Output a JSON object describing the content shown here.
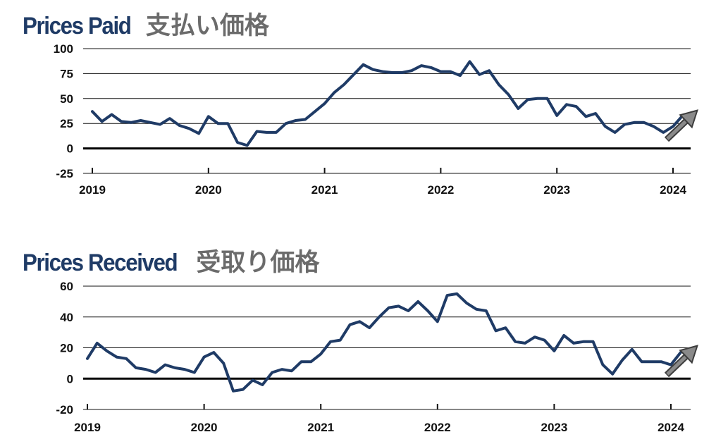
{
  "chart_data": [
    {
      "type": "line",
      "title_en": "Prices Paid",
      "title_ja": "支払い価格",
      "x_labels": [
        "2019",
        "2020",
        "2021",
        "2022",
        "2023",
        "2024"
      ],
      "x_start_year": 2019,
      "x_end_year": 2024.17,
      "ylim": [
        -25,
        100
      ],
      "y_ticks": [
        100,
        75,
        50,
        25,
        0,
        -25
      ],
      "grid": true,
      "series": [
        {
          "color": "#1f3b66",
          "values": [
            37,
            27,
            34,
            27,
            26,
            28,
            26,
            24,
            30,
            23,
            20,
            15,
            32,
            25,
            25,
            6,
            3,
            17,
            16,
            16,
            25,
            28,
            29,
            37,
            45,
            56,
            64,
            74,
            84,
            79,
            77,
            76,
            76,
            78,
            83,
            81,
            77,
            77,
            73,
            87,
            74,
            78,
            64,
            54,
            40,
            49,
            50,
            50,
            33,
            44,
            42,
            32,
            35,
            22,
            16,
            24,
            26,
            26,
            22,
            16,
            22,
            33
          ]
        }
      ],
      "annotation": "upward-arrow"
    },
    {
      "type": "line",
      "title_en": "Prices Received",
      "title_ja": "受取り価格",
      "x_labels": [
        "2019",
        "2020",
        "2021",
        "2022",
        "2023",
        "2024"
      ],
      "x_start_year": 2019,
      "x_end_year": 2024.17,
      "ylim": [
        -20,
        60
      ],
      "y_ticks": [
        60,
        40,
        20,
        0,
        -20
      ],
      "grid": true,
      "series": [
        {
          "color": "#1f3b66",
          "values": [
            13,
            23,
            18,
            14,
            13,
            7,
            6,
            4,
            9,
            7,
            6,
            4,
            14,
            17,
            10,
            -8,
            -7,
            -1,
            -4,
            4,
            6,
            5,
            11,
            11,
            16,
            24,
            25,
            35,
            37,
            33,
            40,
            46,
            47,
            44,
            50,
            44,
            37,
            54,
            55,
            49,
            45,
            44,
            31,
            33,
            24,
            23,
            27,
            25,
            18,
            28,
            23,
            24,
            24,
            9,
            3,
            12,
            19,
            11,
            11,
            11,
            9,
            17
          ]
        }
      ],
      "annotation": "upward-arrow"
    }
  ]
}
